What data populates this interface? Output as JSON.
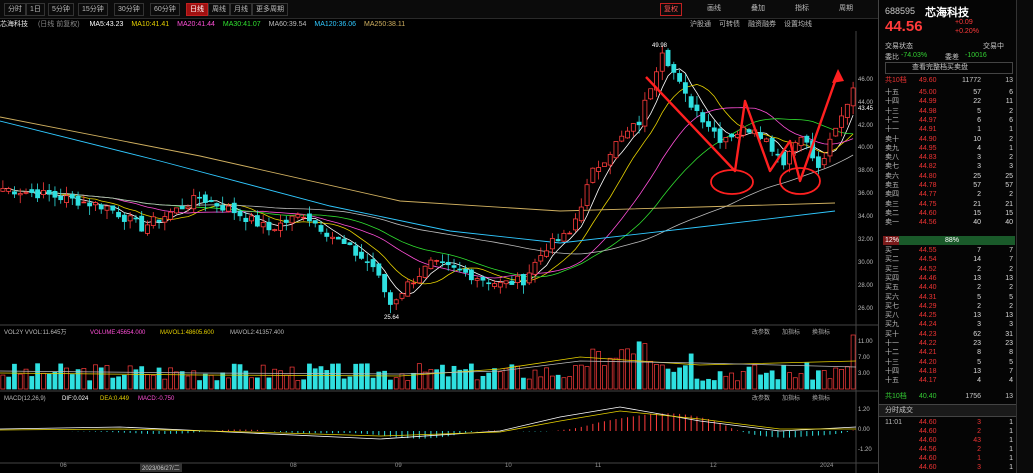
{
  "toolbar": {
    "left_buttons": [
      "分时",
      "1日",
      "5分钟",
      "15分钟",
      "30分钟",
      "60分钟",
      "日线",
      "周线",
      "月线",
      "更多周期"
    ],
    "active_index": 6,
    "right_items": [
      "复权",
      "画线",
      "叠加",
      "指标",
      "周期"
    ]
  },
  "ma_line": {
    "name": "芯海科技",
    "period": "(日线 前复权)",
    "items": [
      {
        "text": "MA5:43.23",
        "color": "#ffffff"
      },
      {
        "text": "MA10:41.41",
        "color": "#e6d100"
      },
      {
        "text": "MA20:41.44",
        "color": "#ff4fd8"
      },
      {
        "text": "MA30:41.07",
        "color": "#30e030"
      },
      {
        "text": "MA60:39.54",
        "color": "#bbbbbb"
      },
      {
        "text": "MA120:36.06",
        "color": "#30c8ff"
      },
      {
        "text": "MA250:38.11",
        "color": "#d0b060"
      }
    ]
  },
  "sub_links": [
    "沪股通",
    "可转债",
    "融资融券",
    "设置均线"
  ],
  "chart_data": {
    "type": "candlestick",
    "y_ticks": [
      46.0,
      44.0,
      42.0,
      40.0,
      38.0,
      36.0,
      34.0,
      32.0,
      30.0,
      28.0,
      26.0
    ],
    "ylim": [
      25.0,
      50.0
    ],
    "annotations": {
      "high": "49.98",
      "low": "25.64",
      "last": "43.45"
    },
    "x_ticks": [
      "06",
      "2023/06/27/二",
      "08",
      "09",
      "10",
      "11",
      "12",
      "2024"
    ],
    "volume_title": "VOL2Y VVOL:11.645万",
    "volume_items": [
      {
        "text": "VOLUME:45654.000",
        "color": "#ff4fd8"
      },
      {
        "text": "MAVOL1:48605.600",
        "color": "#e6d100"
      },
      {
        "text": "MAVOL2:41357.400",
        "color": "#bbbbbb"
      }
    ],
    "volume_ticks": [
      "11.00",
      "7.00",
      "3.00"
    ],
    "macd_title": "MACD(12,26,9)",
    "macd_items": [
      {
        "text": "DIF:0.024",
        "color": "#ffffff"
      },
      {
        "text": "DEA:0.449",
        "color": "#e6d100"
      },
      {
        "text": "MACD:-0.750",
        "color": "#ff4fd8"
      }
    ],
    "macd_ticks": [
      "1.20",
      "0.00",
      "-1.20"
    ],
    "sub_btns": [
      "改参数",
      "加指标",
      "换指标"
    ]
  },
  "quote": {
    "code": "688595",
    "name": "芯海科技",
    "price": "44.56",
    "change": "+0.09",
    "change_pct": "+0.20%",
    "labels": {
      "status": "交易状态",
      "status_val": "交易中",
      "wei_bi": "委比",
      "wei_bi_val": "-74.03%",
      "wei_cha": "委差",
      "wei_cha_val": "-10016"
    },
    "tab": "查看完整档买卖盘",
    "total_sell": {
      "label": "共10档",
      "price": "49.60",
      "vol": "11772",
      "cnt": "13"
    },
    "sells": [
      [
        "十五",
        "45.00",
        "57",
        "6"
      ],
      [
        "十四",
        "44.99",
        "22",
        "11"
      ],
      [
        "十三",
        "44.98",
        "5",
        "2"
      ],
      [
        "十二",
        "44.97",
        "6",
        "6"
      ],
      [
        "十一",
        "44.91",
        "1",
        "1"
      ],
      [
        "卖十",
        "44.90",
        "10",
        "2"
      ],
      [
        "卖九",
        "44.95",
        "4",
        "1"
      ],
      [
        "卖八",
        "44.83",
        "3",
        "2"
      ],
      [
        "卖七",
        "44.82",
        "3",
        "3"
      ],
      [
        "卖六",
        "44.80",
        "25",
        "25"
      ],
      [
        "卖五",
        "44.78",
        "57",
        "57"
      ],
      [
        "卖四",
        "44.77",
        "2",
        "2"
      ],
      [
        "卖三",
        "44.75",
        "21",
        "21"
      ],
      [
        "卖二",
        "44.60",
        "15",
        "15"
      ],
      [
        "卖一",
        "44.56",
        "40",
        "40"
      ]
    ],
    "ratio": {
      "left": "12%",
      "right": "88%"
    },
    "buys": [
      [
        "买一",
        "44.55",
        "7",
        "7"
      ],
      [
        "买二",
        "44.54",
        "14",
        "7"
      ],
      [
        "买三",
        "44.52",
        "2",
        "2"
      ],
      [
        "买四",
        "44.46",
        "13",
        "13"
      ],
      [
        "买五",
        "44.40",
        "2",
        "2"
      ],
      [
        "买六",
        "44.31",
        "5",
        "5"
      ],
      [
        "买七",
        "44.29",
        "2",
        "2"
      ],
      [
        "买八",
        "44.25",
        "13",
        "13"
      ],
      [
        "买九",
        "44.24",
        "3",
        "3"
      ],
      [
        "买十",
        "44.23",
        "62",
        "31"
      ],
      [
        "十一",
        "44.22",
        "23",
        "23"
      ],
      [
        "十二",
        "44.21",
        "8",
        "8"
      ],
      [
        "十三",
        "44.20",
        "5",
        "5"
      ],
      [
        "十四",
        "44.18",
        "13",
        "7"
      ],
      [
        "十五",
        "44.17",
        "4",
        "4"
      ]
    ],
    "total_buy": {
      "label": "共10档",
      "price": "40.40",
      "vol": "1756",
      "cnt": "13"
    },
    "trades_title": "分时成交",
    "trades": [
      [
        "11:01",
        "44.60",
        "3",
        "1"
      ],
      [
        "",
        "44.60",
        "2",
        "1"
      ],
      [
        "",
        "44.60",
        "43",
        "1"
      ],
      [
        "",
        "44.56",
        "2",
        "1"
      ],
      [
        "",
        "44.60",
        "1",
        "1"
      ],
      [
        "",
        "44.60",
        "3",
        "1"
      ]
    ]
  }
}
